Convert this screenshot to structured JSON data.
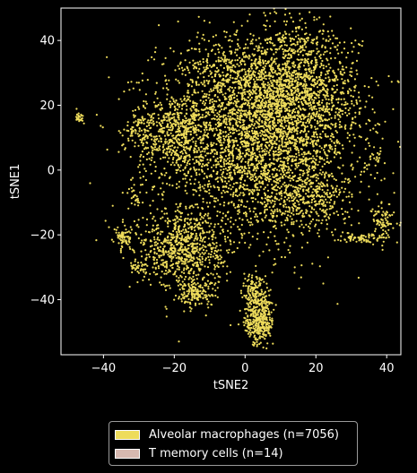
{
  "chart_data": {
    "type": "scatter",
    "title": "",
    "xlabel": "tSNE2",
    "ylabel": "tSNE1",
    "xlim": [
      -52,
      44
    ],
    "ylim": [
      -57,
      50
    ],
    "xticks": [
      -40,
      -20,
      0,
      20,
      40
    ],
    "yticks": [
      -40,
      -20,
      0,
      20,
      40
    ],
    "xtick_labels": [
      "−40",
      "−20",
      "0",
      "20",
      "40"
    ],
    "ytick_labels": [
      "−40",
      "−20",
      "0",
      "20",
      "40"
    ],
    "grid": false,
    "legend_placement": "bottom-center, below axes",
    "background": "#000000",
    "series": [
      {
        "name": "Alveolar macrophages (n=7056)",
        "color": "#eedc5b",
        "count": 7056,
        "clusters": [
          {
            "cx": 3,
            "cy": 10,
            "sx": 14,
            "sy": 15,
            "weight": 0.42
          },
          {
            "cx": 14,
            "cy": 24,
            "sx": 9,
            "sy": 9,
            "weight": 0.14
          },
          {
            "cx": -20,
            "cy": 12,
            "sx": 5,
            "sy": 6,
            "weight": 0.05
          },
          {
            "cx": -18,
            "cy": -24,
            "sx": 6,
            "sy": 6,
            "weight": 0.09
          },
          {
            "cx": -14,
            "cy": -38,
            "sx": 3,
            "sy": 2,
            "weight": 0.02
          },
          {
            "cx": 4,
            "cy": -47,
            "sx": 2,
            "sy": 3.5,
            "weight": 0.04
          },
          {
            "cx": 3,
            "cy": -38,
            "sx": 2,
            "sy": 3,
            "weight": 0.02
          },
          {
            "cx": -34,
            "cy": -21,
            "sx": 1.2,
            "sy": 1.5,
            "weight": 0.008
          },
          {
            "cx": -30,
            "cy": -30,
            "sx": 1.5,
            "sy": 1,
            "weight": 0.004
          },
          {
            "cx": -30,
            "cy": 12,
            "sx": 2,
            "sy": 3,
            "weight": 0.01
          },
          {
            "cx": -47,
            "cy": 16,
            "sx": 0.7,
            "sy": 1,
            "weight": 0.003
          },
          {
            "cx": -31,
            "cy": -8,
            "sx": 1,
            "sy": 1.5,
            "weight": 0.003
          },
          {
            "cx": 39,
            "cy": -16,
            "sx": 1.5,
            "sy": 3,
            "weight": 0.012
          },
          {
            "cx": 32,
            "cy": -21,
            "sx": 2.5,
            "sy": 0.8,
            "weight": 0.008
          },
          {
            "cx": 37,
            "cy": 4,
            "sx": 1,
            "sy": 1,
            "weight": 0.002
          },
          {
            "cx": -6,
            "cy": 28,
            "sx": 5,
            "sy": 4,
            "weight": 0.02
          },
          {
            "cx": 18,
            "cy": -8,
            "sx": 6,
            "sy": 5,
            "weight": 0.04
          },
          {
            "cx": 14,
            "cy": 40,
            "sx": 6,
            "sy": 2,
            "weight": 0.01
          }
        ]
      },
      {
        "name": "T memory cells (n=14)",
        "color": "#d7b9b0",
        "count": 14,
        "points": []
      }
    ]
  }
}
